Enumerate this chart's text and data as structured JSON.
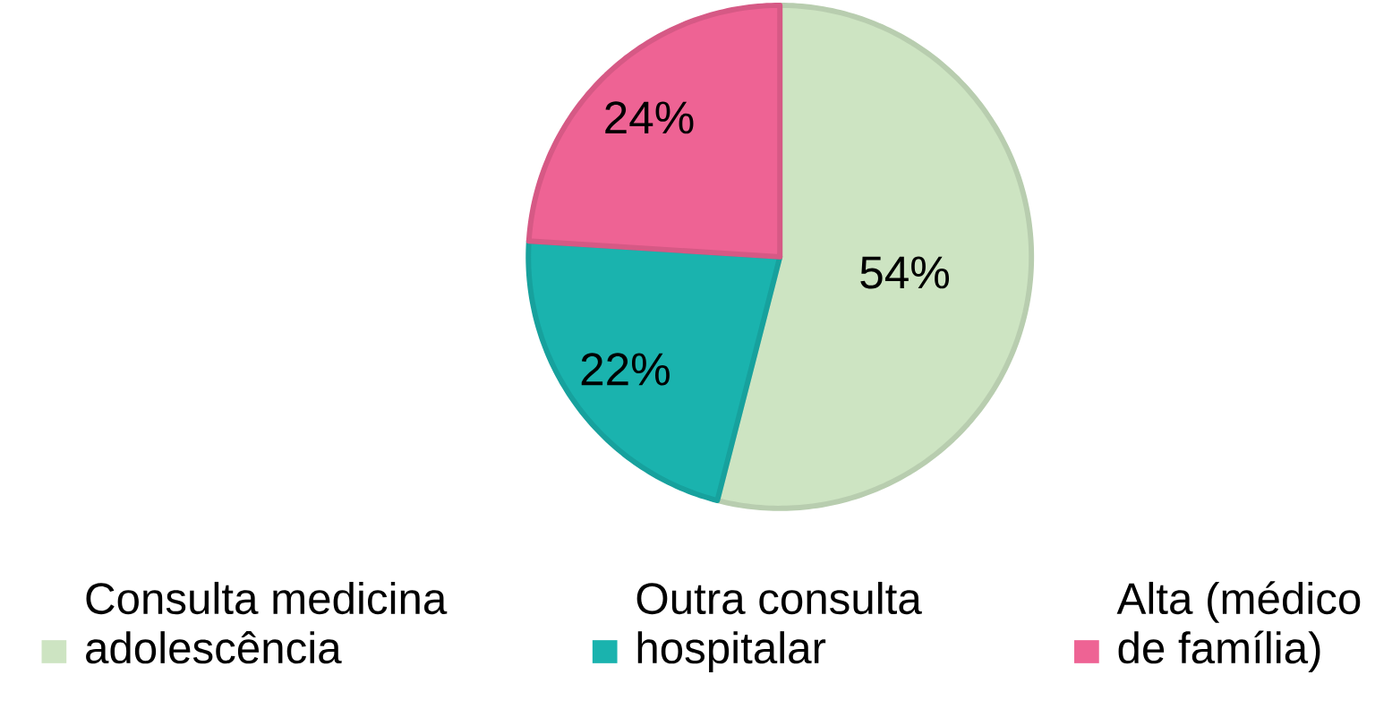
{
  "chart_data": {
    "type": "pie",
    "categories": [
      "Consulta medicina adolescência",
      "Outra consulta hospitalar",
      "Alta (médico de família)"
    ],
    "values": [
      54,
      22,
      24
    ],
    "colors": [
      "#cde4c2",
      "#1ab3ae",
      "#ee6394"
    ],
    "value_labels": [
      "54%",
      "22%",
      "24%"
    ],
    "legend": "bottom"
  }
}
